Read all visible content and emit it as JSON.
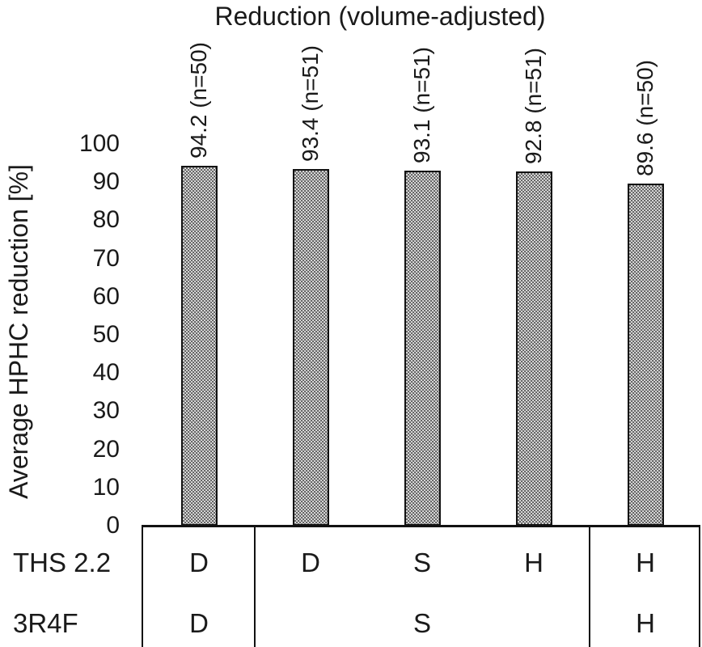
{
  "chart_data": {
    "type": "bar",
    "title": "Reduction (volume-adjusted)",
    "ylabel": "Average HPHC reduction [%]",
    "xlabel": "",
    "ylim": [
      0,
      100
    ],
    "yticks": [
      100,
      90,
      80,
      70,
      60,
      50,
      40,
      30,
      20,
      10,
      0
    ],
    "grid": false,
    "legend_position": "none",
    "bar_style": {
      "fill": "dotted-pattern",
      "fill_base_color": "#ececec",
      "dot_color": "#5e5e5e",
      "border_color": "#121212"
    },
    "series": [
      {
        "name": "Average HPHC reduction",
        "values": [
          94.2,
          93.4,
          93.1,
          92.8,
          89.6
        ],
        "data_labels": [
          "94.2 (n=50)",
          "93.4 (n=51)",
          "93.1 (n=51)",
          "92.8 (n=51)",
          "89.6 (n=50)"
        ],
        "n_per_bar": [
          50,
          51,
          51,
          51,
          50
        ]
      }
    ],
    "condition_table": {
      "groups": [
        [
          0
        ],
        [
          1,
          2,
          3
        ],
        [
          4
        ]
      ],
      "rows": [
        {
          "label": "THS 2.2",
          "cells_per_bar": [
            "D",
            "D",
            "S",
            "H",
            "H"
          ]
        },
        {
          "label": "3R4F",
          "cells_per_group": [
            "D",
            "S",
            "H"
          ]
        }
      ]
    },
    "text_color": "#1a1a1a",
    "line_color": "#121212",
    "background_color": "#ffffff"
  }
}
